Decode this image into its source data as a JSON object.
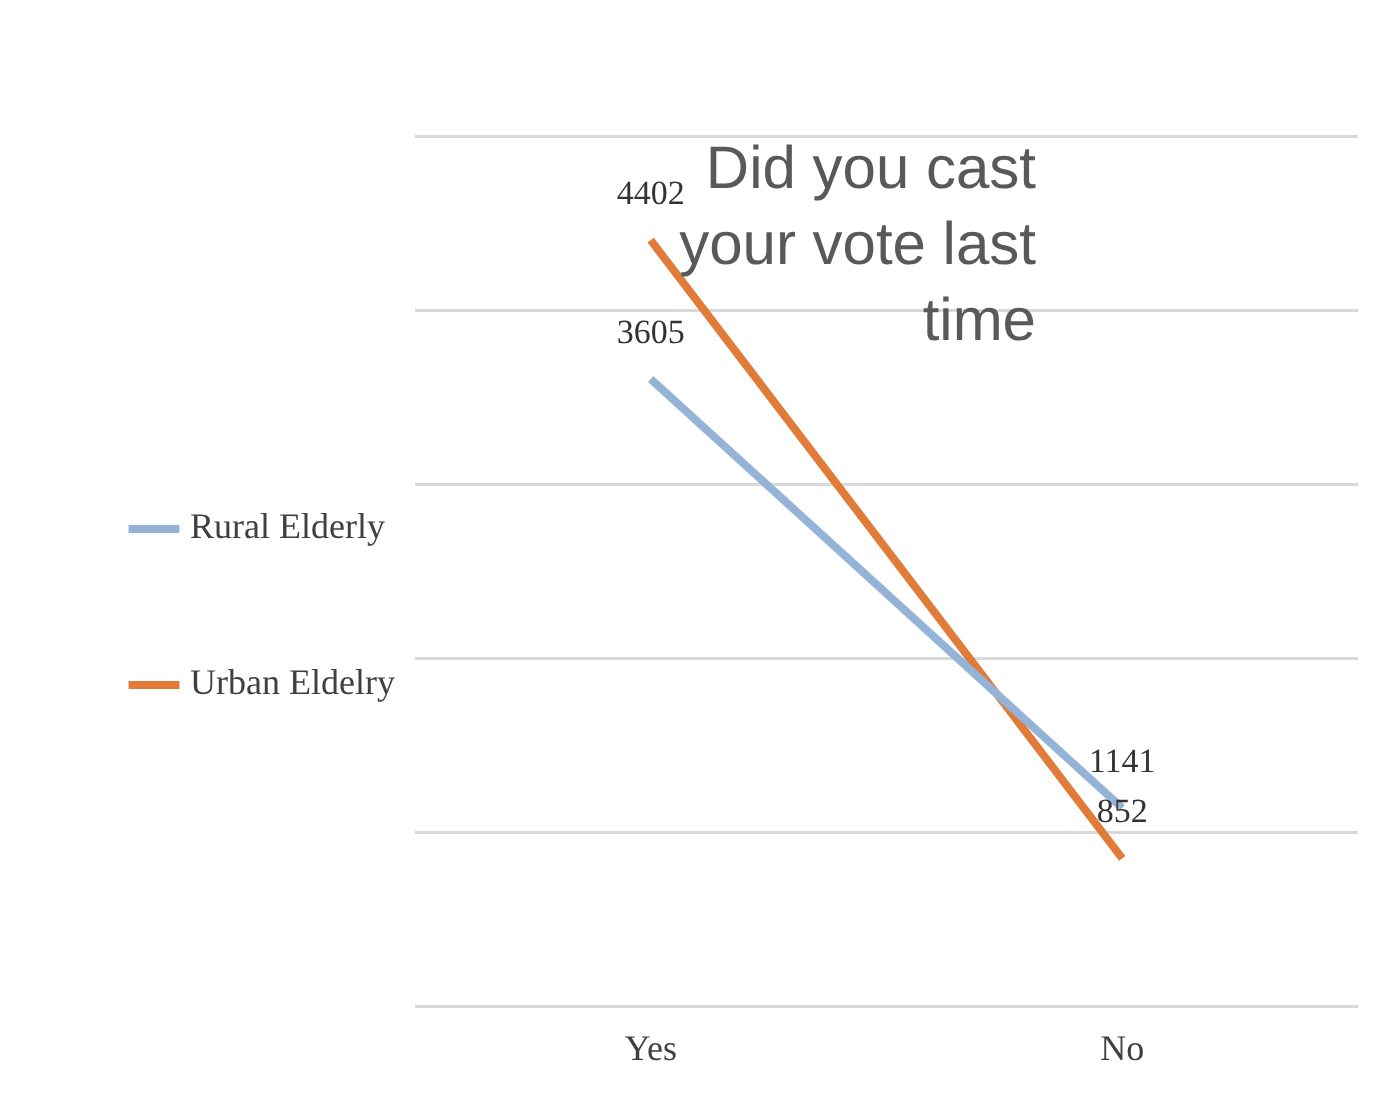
{
  "chart_data": {
    "type": "line",
    "title": "Did you cast your vote last time",
    "categories": [
      "Yes",
      "No"
    ],
    "series": [
      {
        "name": "Rural Elderly",
        "color": "#95b3d7",
        "values": [
          3605,
          1141
        ]
      },
      {
        "name": "Urban Eldelry",
        "color": "#e07b39",
        "values": [
          4402,
          852
        ]
      }
    ],
    "ylim": [
      0,
      5000
    ],
    "yticks": [
      {
        "value": 0,
        "label": null
      },
      {
        "value": 1000,
        "label": null
      },
      {
        "value": 2000,
        "label": null
      },
      {
        "value": 3000,
        "label": null
      },
      {
        "value": 4000,
        "label": null
      },
      {
        "value": 5000,
        "label": null
      }
    ],
    "tick_labels": "x",
    "grid": "y",
    "legend": "left",
    "data_labels": true,
    "marker": "none",
    "line_style": "solid"
  }
}
